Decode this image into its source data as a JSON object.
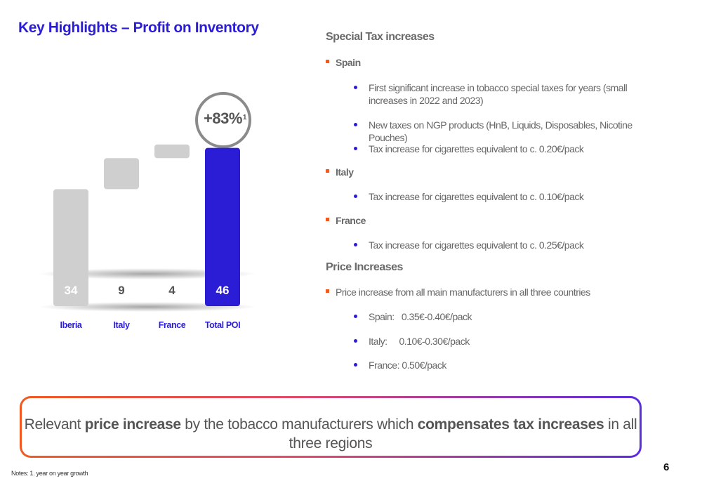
{
  "header": {
    "title": "Key Highlights – Profit on Inventory"
  },
  "chart_data": {
    "type": "bar",
    "subtype": "waterfall",
    "categories": [
      "Iberia",
      "Italy",
      "France",
      "Total POI"
    ],
    "values": [
      34,
      9,
      4,
      46
    ],
    "annotation": "+83%",
    "annotation_note": "1",
    "colors": {
      "base": "#cfcfcf",
      "total": "#2b1cd6",
      "total_label": "#ffffff",
      "step_label": "#555555",
      "category": "#2b1cd6"
    }
  },
  "right": {
    "special_title": "Special Tax increases",
    "spain": {
      "label": "Spain",
      "items": [
        "First significant increase in tobacco special taxes for years (small increases in 2022 and 2023)",
        "New taxes on NGP products (HnB, Liquids, Disposables, Nicotine Pouches)",
        "Tax increase for cigarettes equivalent to c. 0.20€/pack"
      ]
    },
    "italy": {
      "label": "Italy",
      "items": [
        "Tax increase for cigarettes equivalent to c. 0.10€/pack"
      ]
    },
    "france": {
      "label": "France",
      "items": [
        "Tax increase for cigarettes equivalent to c. 0.25€/pack"
      ]
    },
    "price_title": "Price Increases",
    "price_bullet": "Price increase from all main manufacturers in all three countries",
    "price_items": [
      "Spain:   0.35€-0.40€/pack",
      "Italy:     0.10€-0.30€/pack",
      "France: 0.50€/pack"
    ]
  },
  "callout": {
    "t1": "Relevant ",
    "b1": "price increase",
    "t2": " by the tobacco manufacturers which ",
    "b2": "compensates tax increases",
    "t3": " in all three regions"
  },
  "footer": {
    "notes": "Notes: 1. year on year growth",
    "page": "6"
  }
}
